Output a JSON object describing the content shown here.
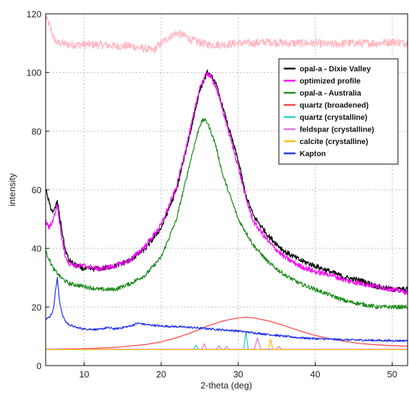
{
  "chart_data": {
    "type": "line",
    "title": "",
    "xlabel": "2-theta (deg)",
    "ylabel": "intensity",
    "xlim": [
      5,
      52
    ],
    "ylim": [
      0,
      120
    ],
    "xticks": [
      10,
      20,
      30,
      40,
      50
    ],
    "yticks": [
      0,
      20,
      40,
      60,
      80,
      100,
      120
    ],
    "grid": true,
    "legend_position": "top-right",
    "series": [
      {
        "name": "opal-a - Dixie Valley",
        "color": "#000000",
        "x": [
          5,
          5.5,
          6,
          6.5,
          7,
          7.5,
          8,
          9,
          10,
          12,
          14,
          16,
          18,
          20,
          22,
          24,
          25,
          26,
          27,
          28,
          30,
          31,
          32,
          34,
          36,
          38,
          40,
          42,
          44,
          46,
          48,
          50,
          52
        ],
        "y": [
          60,
          55,
          52,
          56,
          48,
          40,
          36,
          34,
          33,
          33,
          34,
          36,
          40,
          47,
          60,
          82,
          94,
          100,
          97,
          88,
          70,
          58,
          51,
          44,
          39,
          36,
          34,
          32,
          30,
          29,
          27,
          26,
          26
        ]
      },
      {
        "name": "optimized profile",
        "color": "#ff00ff",
        "x": [
          5,
          5.5,
          6,
          6.5,
          7,
          7.5,
          8,
          9,
          10,
          12,
          14,
          16,
          18,
          20,
          22,
          24,
          25,
          26,
          27,
          28,
          30,
          31,
          32,
          34,
          36,
          38,
          40,
          42,
          44,
          46,
          48,
          50,
          52
        ],
        "y": [
          49,
          47,
          50,
          55,
          45,
          38,
          35,
          34,
          34,
          33,
          34,
          36,
          41,
          48,
          61,
          83,
          95,
          100,
          96,
          87,
          68,
          57,
          49,
          42,
          37,
          34,
          32,
          31,
          29,
          28,
          27,
          26,
          25
        ]
      },
      {
        "name": "opal-a - Australia",
        "color": "#1a8c1a",
        "x": [
          5,
          6,
          7,
          8,
          10,
          12,
          14,
          16,
          18,
          20,
          22,
          24,
          25,
          25.5,
          26,
          27,
          28,
          30,
          32,
          34,
          36,
          38,
          40,
          42,
          44,
          46,
          48,
          50,
          52
        ],
        "y": [
          39,
          33,
          30,
          28,
          27,
          26,
          26,
          28,
          31,
          37,
          50,
          72,
          82,
          84,
          83,
          76,
          65,
          50,
          41,
          35,
          31,
          28,
          26,
          24,
          22,
          21,
          20,
          20,
          20
        ]
      },
      {
        "name": "quartz (broadened)",
        "color": "#ff4444",
        "x": [
          5,
          10,
          14,
          18,
          20,
          22,
          24,
          26,
          28,
          30,
          31,
          32,
          34,
          36,
          38,
          40,
          42,
          44,
          46,
          48,
          50,
          52
        ],
        "y": [
          5.6,
          5.8,
          6.2,
          7.2,
          8.1,
          9.5,
          11.3,
          13.5,
          15.2,
          16.3,
          16.5,
          16.3,
          15.2,
          13.6,
          11.8,
          10.3,
          9.1,
          8.2,
          7.5,
          7.1,
          6.8,
          6.6
        ]
      },
      {
        "name": "quartz (crystalline)",
        "color": "#22cccc",
        "x": [
          5,
          24.2,
          24.5,
          24.8,
          30.7,
          31.0,
          31.3,
          52
        ],
        "y": [
          5.5,
          5.5,
          7,
          5.5,
          5.5,
          11.5,
          5.5,
          5.5
        ]
      },
      {
        "name": "feldspar (crystalline)",
        "color": "#dd77dd",
        "x": [
          5,
          25.3,
          25.6,
          25.9,
          27.2,
          27.5,
          27.8,
          28.2,
          28.5,
          28.8,
          32.1,
          32.5,
          32.9,
          35.0,
          35.3,
          35.6,
          52
        ],
        "y": [
          5.6,
          5.6,
          7.5,
          5.6,
          5.6,
          6.8,
          5.6,
          5.6,
          6.5,
          5.6,
          5.6,
          9.5,
          5.6,
          5.6,
          6.5,
          5.6,
          5.6
        ]
      },
      {
        "name": "calcite (crystalline)",
        "color": "#ffbb00",
        "x": [
          5,
          33.9,
          34.2,
          34.5,
          52
        ],
        "y": [
          5.5,
          5.5,
          9.0,
          5.5,
          5.5
        ]
      },
      {
        "name": "Kapton",
        "color": "#2233ee",
        "x": [
          5,
          5.5,
          6,
          6.2,
          6.5,
          6.8,
          7.2,
          7.6,
          8,
          9,
          10,
          12,
          13,
          14,
          16,
          17,
          18,
          20,
          22,
          24,
          26,
          28,
          30,
          32,
          34,
          36,
          38,
          40,
          42,
          44,
          46,
          48,
          50,
          52
        ],
        "y": [
          16,
          16.5,
          19,
          24,
          30,
          22,
          17,
          15,
          14,
          13,
          12.5,
          12.3,
          13,
          12.5,
          13.5,
          14.5,
          14,
          13.5,
          13.3,
          13,
          12.6,
          12.2,
          11.8,
          11.2,
          10.6,
          10,
          9.5,
          9.2,
          9,
          8.8,
          8.7,
          8.6,
          8.5,
          8.5
        ]
      },
      {
        "name": "",
        "color": "#ffb6c1",
        "x": [
          5,
          5.5,
          6,
          6.5,
          7,
          8,
          10,
          12,
          14,
          16,
          18,
          19,
          20,
          21,
          22,
          23,
          24,
          26,
          28,
          30,
          32,
          34,
          36,
          38,
          40,
          42,
          44,
          46,
          48,
          50,
          52
        ],
        "y": [
          119,
          116,
          112,
          110,
          110,
          109.5,
          109.5,
          109.5,
          109,
          109,
          108,
          107.5,
          110,
          112,
          113.5,
          112.5,
          111,
          109.5,
          109.5,
          110,
          110,
          110.5,
          110,
          110,
          110,
          109.5,
          110,
          110,
          110,
          110.5,
          110
        ]
      }
    ]
  }
}
